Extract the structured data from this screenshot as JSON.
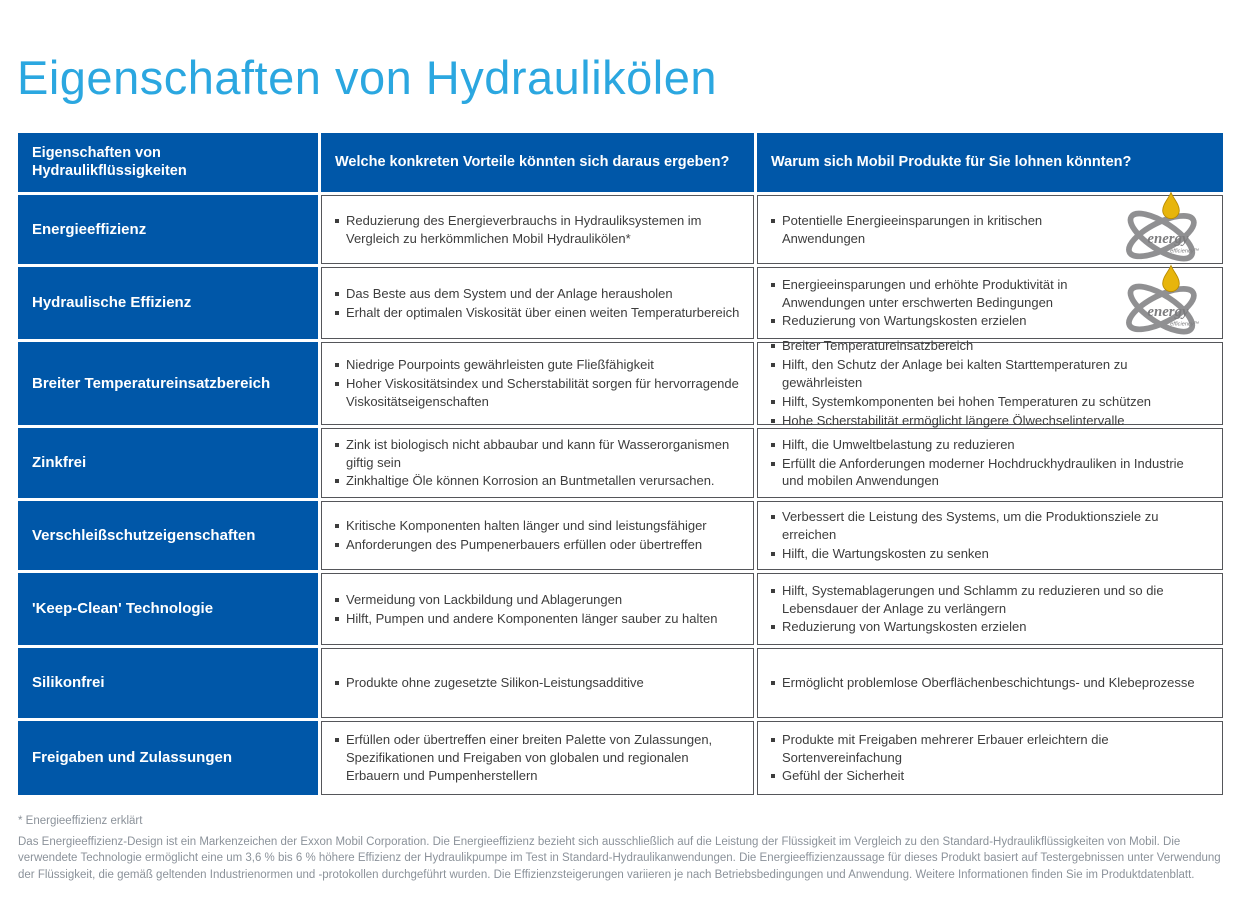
{
  "title": "Eigenschaften von Hydraulikölen",
  "colors": {
    "brand_blue": "#0057a8",
    "title_blue": "#2ba7e0",
    "border_gray": "#55565a",
    "footnote_gray": "#8b929a",
    "logo_gray": "#909092",
    "logo_drop_yellow": "#e7b50c"
  },
  "logo": {
    "word1": "energy",
    "word2": "efficiency™"
  },
  "table": {
    "headers": [
      "Eigenschaften von Hydraulikflüssigkeiten",
      "Welche konkreten Vorteile könnten sich daraus ergeben?",
      "Warum sich Mobil Produkte für Sie lohnen könnten?"
    ],
    "rows": [
      {
        "property": "Energieeffizienz",
        "benefits": [
          "Reduzierung des Energieverbrauchs in Hydrauliksystemen im Vergleich zu herkömmlichen Mobil Hydraulikölen*"
        ],
        "reasons": [
          "Potentielle Energieeinsparungen in kritischen Anwendungen"
        ],
        "energy_logo": true
      },
      {
        "property": "Hydraulische Effizienz",
        "benefits": [
          "Das Beste aus dem System und der Anlage herausholen",
          "Erhalt der optimalen Viskosität über einen weiten Temperaturbereich"
        ],
        "reasons": [
          "Energieeinsparungen und erhöhte Produktivität in Anwendungen unter erschwerten Bedingungen",
          "Reduzierung von Wartungskosten erzielen"
        ],
        "energy_logo": true
      },
      {
        "property": "Breiter Temperatureinsatzbereich",
        "benefits": [
          "Niedrige Pourpoints gewährleisten gute Fließfähigkeit",
          "Hoher Viskositätsindex und Scherstabilität sorgen für hervorragende Viskositätseigenschaften"
        ],
        "reasons": [
          "Breiter Temperatureinsatzbereich",
          "Hilft, den Schutz der Anlage bei kalten Starttemperaturen zu gewährleisten",
          "Hilft, Systemkomponenten bei hohen Temperaturen zu schützen",
          "Hohe Scherstabilität ermöglicht längere Ölwechselintervalle"
        ],
        "energy_logo": false
      },
      {
        "property": "Zinkfrei",
        "benefits": [
          "Zink ist biologisch nicht abbaubar und kann für Wasserorganismen giftig sein",
          "Zinkhaltige Öle können Korrosion an Buntmetallen verursachen."
        ],
        "reasons": [
          "Hilft, die Umweltbelastung zu reduzieren",
          "Erfüllt die Anforderungen moderner Hochdruckhydrauliken in Industrie und mobilen Anwendungen"
        ],
        "energy_logo": false
      },
      {
        "property": "Verschleißschutzeigenschaften",
        "benefits": [
          "Kritische Komponenten halten länger und sind leistungsfähiger",
          "Anforderungen des Pumpenerbauers erfüllen oder übertreffen"
        ],
        "reasons": [
          "Verbessert die Leistung des Systems, um die Produktionsziele zu erreichen",
          "Hilft, die Wartungskosten zu senken"
        ],
        "energy_logo": false
      },
      {
        "property": "'Keep-Clean' Technologie",
        "benefits": [
          "Vermeidung von Lackbildung und Ablagerungen",
          "Hilft, Pumpen und andere Komponenten länger sauber zu halten"
        ],
        "reasons": [
          "Hilft, Systemablagerungen und Schlamm zu reduzieren und so die Lebensdauer der Anlage zu verlängern",
          "Reduzierung von Wartungskosten erzielen"
        ],
        "energy_logo": false
      },
      {
        "property": "Silikonfrei",
        "benefits": [
          "Produkte ohne zugesetzte Silikon-Leistungsadditive"
        ],
        "reasons": [
          "Ermöglicht problemlose Oberflächenbeschichtungs- und Klebeprozesse"
        ],
        "energy_logo": false
      },
      {
        "property": "Freigaben und Zulassungen",
        "benefits": [
          "Erfüllen oder übertreffen einer breiten Palette von Zulassungen, Spezifikationen und Freigaben von globalen und regionalen Erbauern und Pumpenherstellern"
        ],
        "reasons": [
          "Produkte mit Freigaben mehrerer Erbauer erleichtern die Sortenvereinfachung",
          "Gefühl der Sicherheit"
        ],
        "energy_logo": false
      }
    ]
  },
  "footnote": {
    "title": "* Energieeffizienz erklärt",
    "body": "Das Energieeffizienz-Design ist ein Markenzeichen der Exxon Mobil Corporation. Die Energieeffizienz bezieht sich ausschließlich auf die Leistung der Flüssigkeit im Vergleich zu den Standard-Hydraulikflüssigkeiten von Mobil. Die verwendete Technologie ermöglicht eine um 3,6 % bis 6 % höhere Effizienz der Hydraulikpumpe im Test in Standard-Hydraulikanwendungen. Die Energieeffizienzaussage für dieses Produkt basiert auf Testergebnissen unter Verwendung der Flüssigkeit, die gemäß geltenden Industrienormen und -protokollen durchgeführt wurden. Die Effizienzsteigerungen variieren je nach Betriebsbedingungen und Anwendung. Weitere Informationen finden Sie im Produktdatenblatt."
  }
}
